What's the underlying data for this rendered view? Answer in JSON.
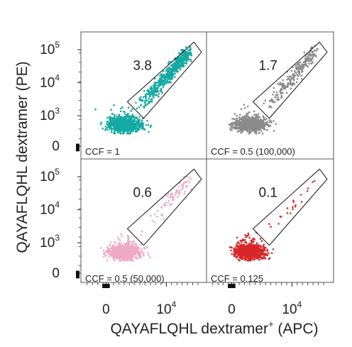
{
  "chart_data": {
    "type": "scatter",
    "xlabel": "QAYAFLQHL dextramer",
    "xlabel_superscript": "+",
    "xlabel_suffix": " (APC)",
    "ylabel": "QAYAFLQHL dextramer (PE)",
    "scale": "biexponential",
    "y_ticks": [
      {
        "value": 0,
        "label": "0"
      },
      {
        "value": 1000,
        "label": "10",
        "exp": "3"
      },
      {
        "value": 10000,
        "label": "10",
        "exp": "4"
      },
      {
        "value": 100000,
        "label": "10",
        "exp": "5"
      }
    ],
    "x_ticks": [
      {
        "value": 0,
        "label": "0"
      },
      {
        "value": 10000,
        "label": "10",
        "exp": "4"
      }
    ],
    "panels": [
      {
        "position": "top-left",
        "ccf_label": "CCF = 1",
        "gate_frequency": "3.8",
        "color": "#14a9a2",
        "events": {
          "negative_cluster_center": [
            30,
            30
          ],
          "gated_population": "diagonal, density high"
        }
      },
      {
        "position": "top-right",
        "ccf_label": "CCF = 0.5 (100,000)",
        "gate_frequency": "1.7",
        "color": "#8a8a8a",
        "events": {
          "negative_cluster_center": [
            30,
            30
          ],
          "gated_population": "diagonal, density medium"
        }
      },
      {
        "position": "bottom-left",
        "ccf_label": "CCF = 0.5 (50,000)",
        "gate_frequency": "0.6",
        "color": "#eeaac4",
        "events": {
          "negative_cluster_center": [
            30,
            30
          ],
          "gated_population": "diagonal, density low"
        }
      },
      {
        "position": "bottom-right",
        "ccf_label": "CCF = 0.125",
        "gate_frequency": "0.1",
        "color": "#d8282a",
        "events": {
          "negative_cluster_center": [
            30,
            30
          ],
          "gated_population": "diagonal, density very low"
        }
      }
    ]
  }
}
